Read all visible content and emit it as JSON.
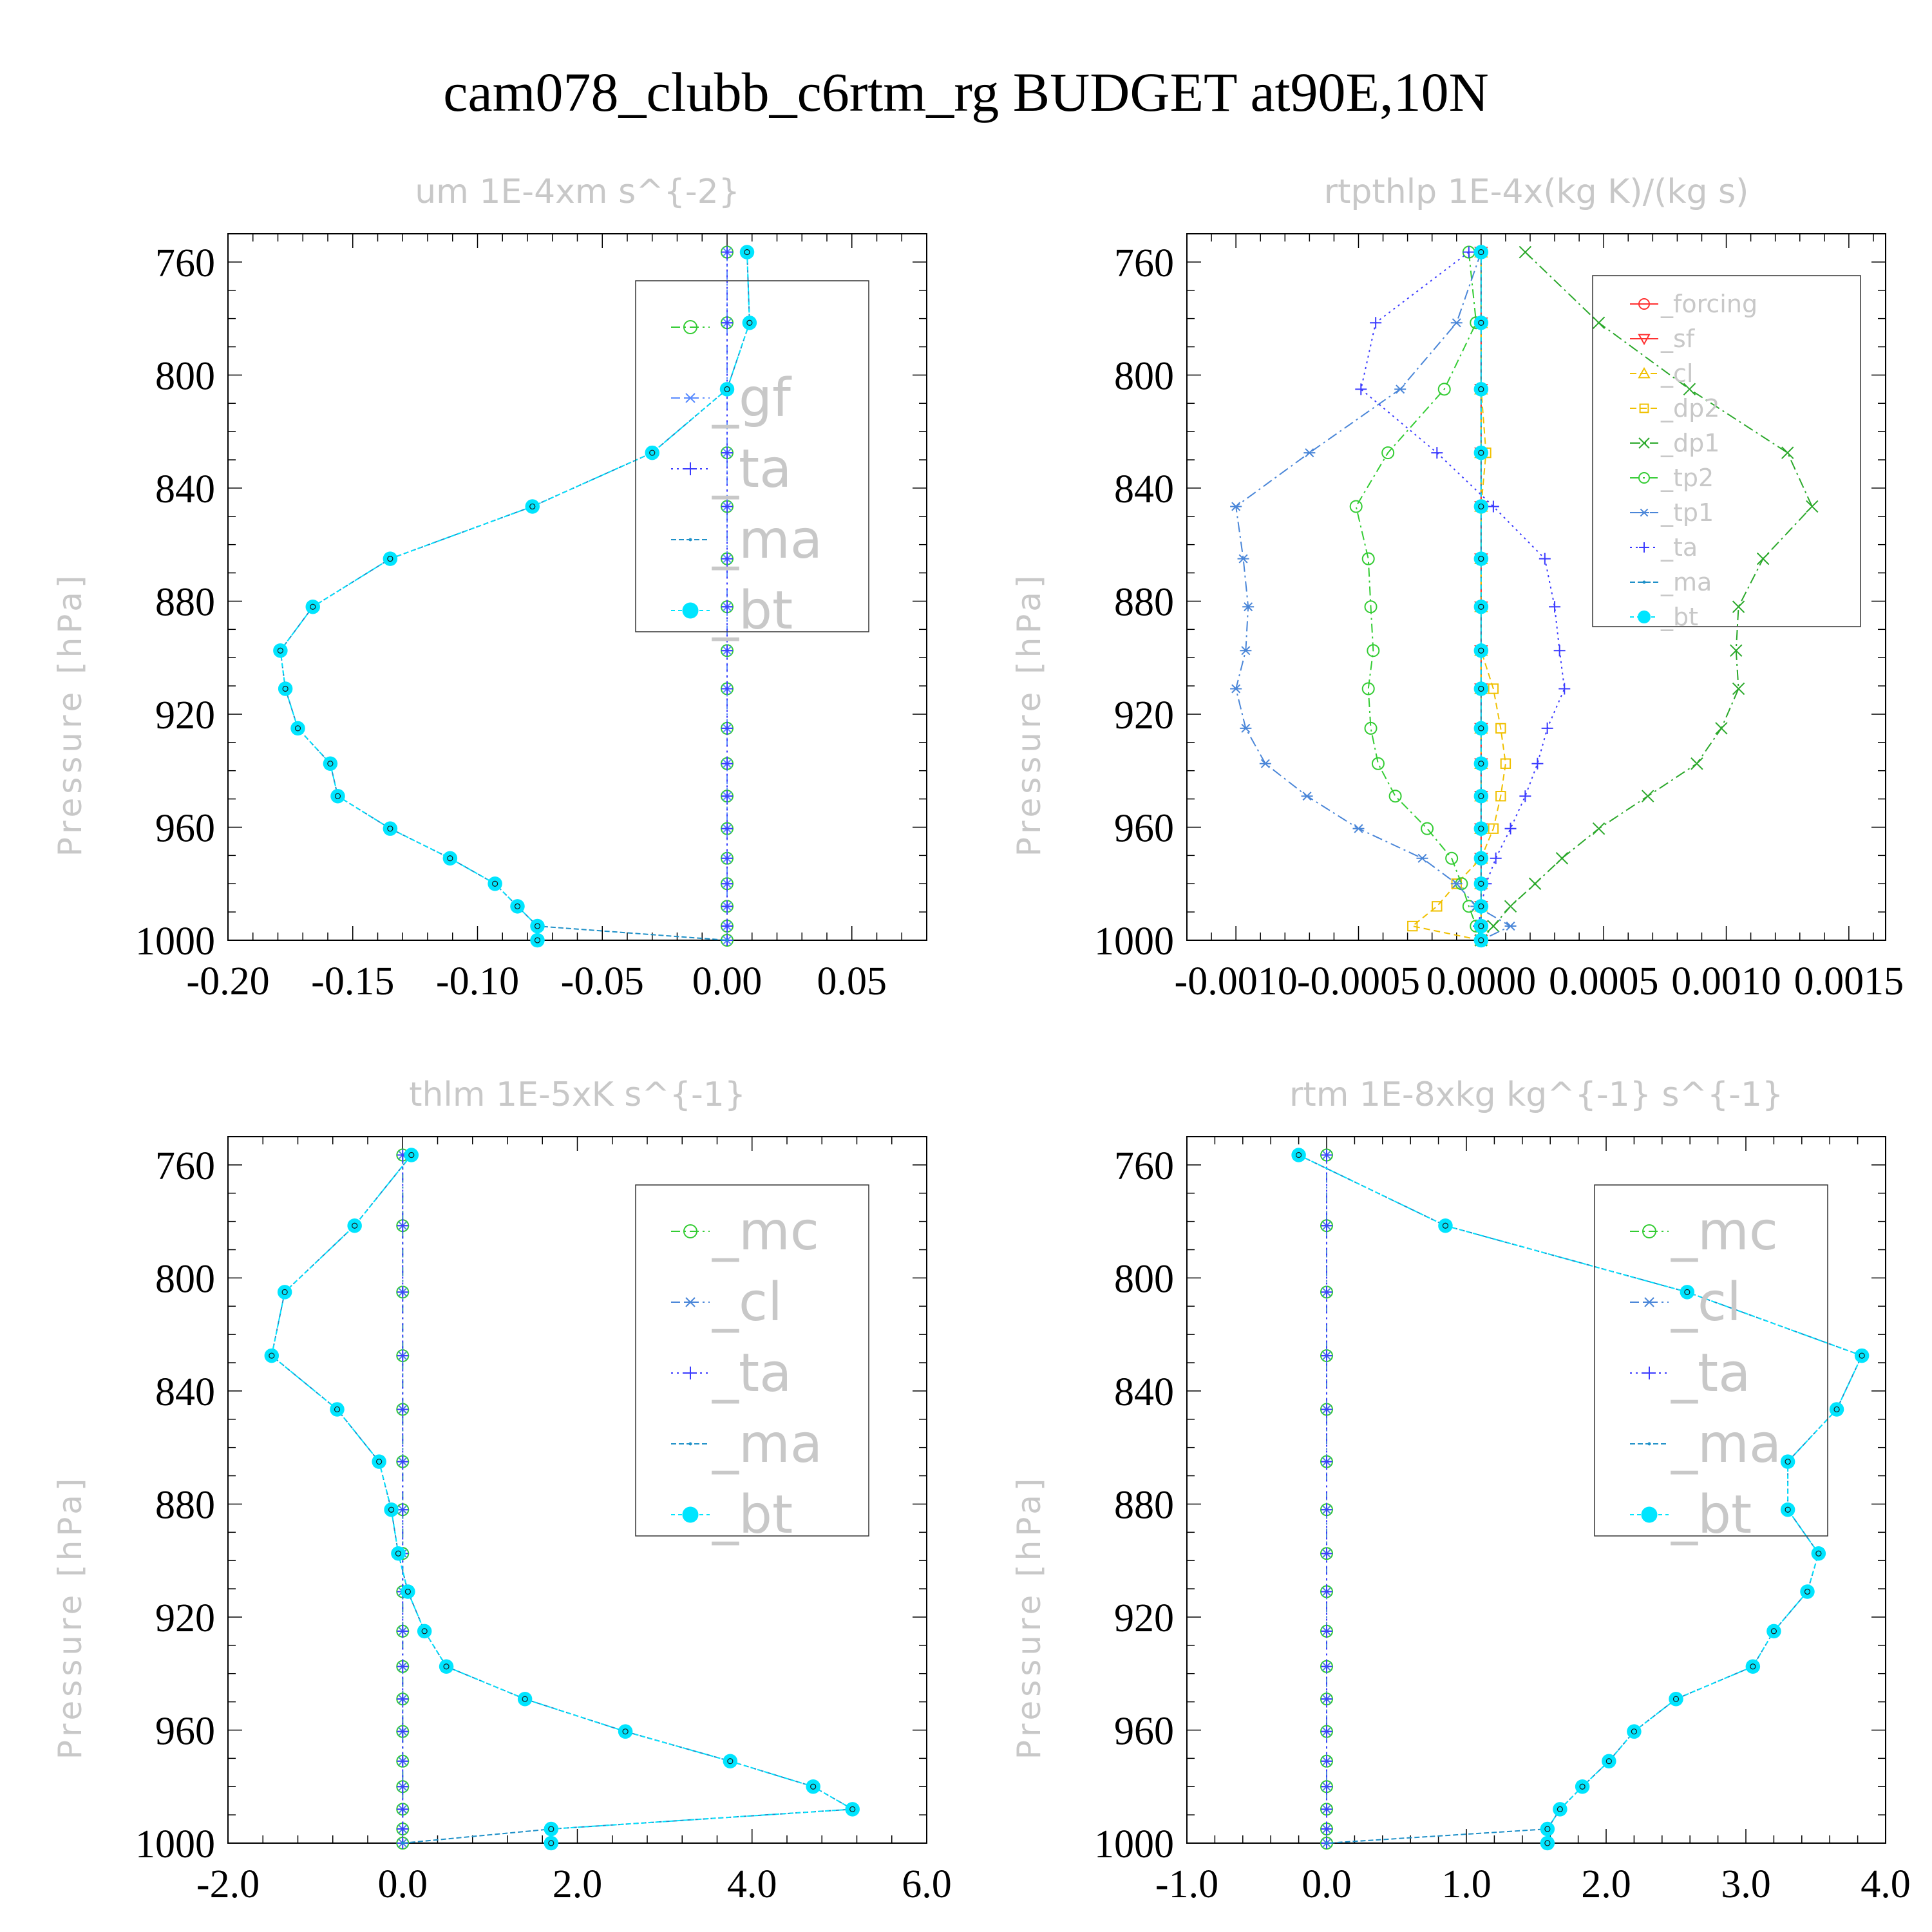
{
  "suptitle": "cam078_clubb_c6rtm_rg  BUDGET at90E,10N",
  "colors": {
    "bt": "#00e5ff",
    "ma": "#1e90c8",
    "ta": "#3a3aff",
    "gf": "#5a8cff",
    "cl": "#4a86d8",
    "mc": "#33cc33",
    "tp2": "#33cc33",
    "tp1": "#4a86d8",
    "dp1": "#2aa82a",
    "dp2": "#f0c000",
    "forcing": "#ff3030",
    "sf": "#ff3030",
    "dark": "#1a1a1a"
  },
  "chart_data": [
    {
      "type": "line",
      "title": "um  1E-4xm s^{-2}",
      "ylabel": "Pressure [hPa]",
      "yticks": [
        760,
        800,
        840,
        880,
        920,
        960,
        1000
      ],
      "ytick_labels": [
        "760",
        "800",
        "840",
        "880",
        "920",
        "960",
        "1000"
      ],
      "xticks": [
        -0.2,
        -0.15,
        -0.1,
        -0.05,
        0.0,
        0.05
      ],
      "xtick_labels": [
        "-0.20",
        "-0.15",
        "-0.10",
        "-0.05",
        "0.00",
        "0.05"
      ],
      "xlim": [
        -0.2,
        0.08
      ],
      "ylim": [
        1000,
        750
      ],
      "legend": {
        "position": "top-right",
        "labels": [
          "",
          "_gf",
          "_ta",
          "_ma",
          "_bt"
        ],
        "font_size": 82
      },
      "pressure": [
        756.5,
        781.5,
        805,
        827.5,
        846.5,
        865,
        882,
        897.5,
        911,
        925,
        937.5,
        949,
        960.5,
        971,
        980,
        988,
        995,
        1000
      ],
      "series": [
        {
          "name": "",
          "color": "mc",
          "marker": "circle-open",
          "values": [
            0.0,
            0.0,
            0.0,
            0.0,
            0.0,
            0.0,
            0.0,
            0.0,
            0.0,
            0.0,
            0.0,
            0.0,
            0.0,
            0.0,
            0.0,
            0.0,
            0.0,
            0.0
          ]
        },
        {
          "name": "_gf",
          "color": "gf",
          "marker": "star",
          "values": [
            0.0,
            0.0,
            0.0,
            0.0,
            0.0,
            0.0,
            0.0,
            0.0,
            0.0,
            0.0,
            0.0,
            0.0,
            0.0,
            0.0,
            0.0,
            0.0,
            0.0,
            0.0
          ]
        },
        {
          "name": "_ta",
          "color": "ta",
          "marker": "plus",
          "values": [
            0.0,
            0.0,
            0.0,
            0.0,
            0.0,
            0.0,
            0.0,
            0.0,
            0.0,
            0.0,
            0.0,
            0.0,
            0.0,
            0.0,
            0.0,
            0.0,
            0.0,
            0.0
          ]
        },
        {
          "name": "_ma",
          "color": "ma",
          "marker": "dot",
          "values": [
            0.008,
            0.009,
            0.0,
            -0.03,
            -0.078,
            -0.135,
            -0.166,
            -0.179,
            -0.177,
            -0.172,
            -0.159,
            -0.156,
            -0.135,
            -0.111,
            -0.093,
            -0.084,
            -0.076,
            0.0
          ]
        },
        {
          "name": "_bt",
          "color": "bt",
          "marker": "filled",
          "values": [
            0.008,
            0.009,
            0.0,
            -0.03,
            -0.078,
            -0.135,
            -0.166,
            -0.179,
            -0.177,
            -0.172,
            -0.159,
            -0.156,
            -0.135,
            -0.111,
            -0.093,
            -0.084,
            -0.076,
            -0.076
          ]
        }
      ]
    },
    {
      "type": "line",
      "title": "rtpthlp   1E-4x(kg K)/(kg s)",
      "ylabel": "Pressure [hPa]",
      "yticks": [
        760,
        800,
        840,
        880,
        920,
        960,
        1000
      ],
      "ytick_labels": [
        "760",
        "800",
        "840",
        "880",
        "920",
        "960",
        "1000"
      ],
      "xticks": [
        -0.001,
        -0.0005,
        0.0,
        0.0005,
        0.001,
        0.0015
      ],
      "xtick_labels": [
        "-0.0010",
        "-0.0005",
        "0.0000",
        "0.0005",
        "0.0010",
        "0.0015"
      ],
      "xlim": [
        -0.0012,
        0.00165
      ],
      "ylim": [
        1000,
        750
      ],
      "legend": {
        "position": "top-right",
        "labels": [
          "_forcing",
          "_sf",
          "_cl",
          "_dp2",
          "_dp1",
          "_tp2",
          "_tp1",
          "_ta",
          "_ma",
          "_bt"
        ],
        "font_size": 38
      },
      "pressure": [
        756.5,
        781.5,
        805,
        827.5,
        846.5,
        865,
        882,
        897.5,
        911,
        925,
        937.5,
        949,
        960.5,
        971,
        980,
        988,
        995,
        1000
      ],
      "series": [
        {
          "name": "_forcing",
          "color": "forcing",
          "marker": "circle-open",
          "values": [
            0,
            0,
            0,
            0,
            0,
            0,
            0,
            0,
            0,
            0,
            0,
            0,
            0,
            0,
            0,
            0,
            0,
            0
          ]
        },
        {
          "name": "_sf",
          "color": "sf",
          "marker": "triangle-down",
          "values": [
            0,
            0,
            0,
            0,
            0,
            0,
            0,
            0,
            0,
            0,
            0,
            0,
            0,
            0,
            0,
            0,
            0,
            0
          ]
        },
        {
          "name": "_cl",
          "color": "dp2",
          "marker": "triangle-up",
          "values": [
            0,
            0,
            0,
            0,
            0,
            0,
            0,
            0,
            0,
            0,
            0,
            0,
            0,
            0,
            0,
            0,
            0,
            0
          ]
        },
        {
          "name": "_dp2",
          "color": "dp2",
          "marker": "square-open",
          "values": [
            0.0,
            0.0,
            0.0,
            2e-05,
            0.0,
            0.0,
            0.0,
            0.0,
            5e-05,
            8e-05,
            0.0001,
            8e-05,
            5e-05,
            0.0,
            -0.0001,
            -0.00018,
            -0.00028,
            0.0
          ]
        },
        {
          "name": "_dp1",
          "color": "dp1",
          "marker": "x",
          "values": [
            0.00018,
            0.00048,
            0.00085,
            0.00125,
            0.00135,
            0.00115,
            0.00105,
            0.00104,
            0.00105,
            0.00098,
            0.00088,
            0.00068,
            0.00048,
            0.00033,
            0.00022,
            0.00012,
            5e-05,
            0.0
          ]
        },
        {
          "name": "_tp2",
          "color": "tp2",
          "marker": "circle-open",
          "values": [
            -5e-05,
            -2e-05,
            -0.00015,
            -0.00038,
            -0.00051,
            -0.00046,
            -0.00045,
            -0.00044,
            -0.00046,
            -0.00045,
            -0.00042,
            -0.00035,
            -0.00022,
            -0.00012,
            -8e-05,
            -5e-05,
            -2e-05,
            0.0
          ]
        },
        {
          "name": "_tp1",
          "color": "tp1",
          "marker": "star",
          "values": [
            0.0,
            -0.0001,
            -0.00033,
            -0.0007,
            -0.001,
            -0.00097,
            -0.00095,
            -0.00096,
            -0.001,
            -0.00096,
            -0.00088,
            -0.00071,
            -0.0005,
            -0.00024,
            -0.0001,
            -2e-05,
            0.00012,
            0.0
          ]
        },
        {
          "name": "_ta",
          "color": "ta",
          "marker": "plus",
          "values": [
            -5e-05,
            -0.00043,
            -0.00049,
            -0.00018,
            5e-05,
            0.00026,
            0.0003,
            0.00032,
            0.00034,
            0.00027,
            0.00023,
            0.00018,
            0.00012,
            6e-05,
            2e-05,
            0.0,
            -1e-05,
            0.0
          ]
        },
        {
          "name": "_ma",
          "color": "ma",
          "marker": "dot",
          "values": [
            0,
            0,
            0,
            0,
            0,
            0,
            0,
            0,
            0,
            0,
            0,
            0,
            0,
            0,
            0,
            0,
            0,
            0
          ]
        },
        {
          "name": "_bt",
          "color": "bt",
          "marker": "filled",
          "values": [
            0,
            0,
            0,
            0,
            0,
            0,
            0,
            0,
            0,
            0,
            0,
            0,
            0,
            0,
            0,
            0,
            0,
            0
          ]
        }
      ]
    },
    {
      "type": "line",
      "title": "thlm   1E-5xK s^{-1}",
      "ylabel": "Pressure [hPa]",
      "yticks": [
        760,
        800,
        840,
        880,
        920,
        960,
        1000
      ],
      "ytick_labels": [
        "760",
        "800",
        "840",
        "880",
        "920",
        "960",
        "1000"
      ],
      "xticks": [
        -2,
        0,
        2,
        4,
        6
      ],
      "xtick_labels": [
        "-2.0",
        "0.0",
        "2.0",
        "4.0",
        "6.0"
      ],
      "xlim": [
        -2,
        6
      ],
      "ylim": [
        1000,
        750
      ],
      "legend": {
        "position": "top-right",
        "labels": [
          "_mc",
          "_cl",
          "_ta",
          "_ma",
          "_bt"
        ],
        "font_size": 82
      },
      "pressure": [
        756.5,
        781.5,
        805,
        827.5,
        846.5,
        865,
        882,
        897.5,
        911,
        925,
        937.5,
        949,
        960.5,
        971,
        980,
        988,
        995,
        1000
      ],
      "series": [
        {
          "name": "_mc",
          "color": "mc",
          "marker": "circle-open",
          "values": [
            0,
            0,
            0,
            0,
            0,
            0,
            0,
            0,
            0,
            0,
            0,
            0,
            0,
            0,
            0,
            0,
            0,
            0
          ]
        },
        {
          "name": "_cl",
          "color": "cl",
          "marker": "star",
          "values": [
            0,
            0,
            0,
            0,
            0,
            0,
            0,
            0,
            0,
            0,
            0,
            0,
            0,
            0,
            0,
            0,
            0,
            0
          ]
        },
        {
          "name": "_ta",
          "color": "ta",
          "marker": "plus",
          "values": [
            0,
            0,
            0,
            0,
            0,
            0,
            0,
            0,
            0,
            0,
            0,
            0,
            0,
            0,
            0,
            0,
            0,
            0
          ]
        },
        {
          "name": "_ma",
          "color": "ma",
          "marker": "dot",
          "values": [
            0.1,
            -0.55,
            -1.35,
            -1.5,
            -0.75,
            -0.27,
            -0.13,
            -0.05,
            0.06,
            0.25,
            0.5,
            1.4,
            2.55,
            3.75,
            4.7,
            5.15,
            1.7,
            0.0
          ]
        },
        {
          "name": "_bt",
          "color": "bt",
          "marker": "filled",
          "values": [
            0.1,
            -0.55,
            -1.35,
            -1.5,
            -0.75,
            -0.27,
            -0.13,
            -0.05,
            0.06,
            0.25,
            0.5,
            1.4,
            2.55,
            3.75,
            4.7,
            5.15,
            1.7,
            1.7
          ]
        }
      ]
    },
    {
      "type": "line",
      "title": "rtm   1E-8xkg kg^{-1} s^{-1}",
      "ylabel": "Pressure [hPa]",
      "yticks": [
        760,
        800,
        840,
        880,
        920,
        960,
        1000
      ],
      "ytick_labels": [
        "760",
        "800",
        "840",
        "880",
        "920",
        "960",
        "1000"
      ],
      "xticks": [
        -1,
        0,
        1,
        2,
        3,
        4
      ],
      "xtick_labels": [
        "-1.0",
        "0.0",
        "1.0",
        "2.0",
        "3.0",
        "4.0"
      ],
      "xlim": [
        -1,
        4
      ],
      "ylim": [
        1000,
        750
      ],
      "legend": {
        "position": "top-right",
        "labels": [
          "_mc",
          "_cl",
          "_ta",
          "_ma",
          "_bt"
        ],
        "font_size": 82
      },
      "pressure": [
        756.5,
        781.5,
        805,
        827.5,
        846.5,
        865,
        882,
        897.5,
        911,
        925,
        937.5,
        949,
        960.5,
        971,
        980,
        988,
        995,
        1000
      ],
      "series": [
        {
          "name": "_mc",
          "color": "mc",
          "marker": "circle-open",
          "values": [
            0,
            0,
            0,
            0,
            0,
            0,
            0,
            0,
            0,
            0,
            0,
            0,
            0,
            0,
            0,
            0,
            0,
            0
          ]
        },
        {
          "name": "_cl",
          "color": "cl",
          "marker": "star",
          "values": [
            0,
            0,
            0,
            0,
            0,
            0,
            0,
            0,
            0,
            0,
            0,
            0,
            0,
            0,
            0,
            0,
            0,
            0
          ]
        },
        {
          "name": "_ta",
          "color": "ta",
          "marker": "plus",
          "values": [
            0,
            0,
            0,
            0,
            0,
            0,
            0,
            0,
            0,
            0,
            0,
            0,
            0,
            0,
            0,
            0,
            0,
            0
          ]
        },
        {
          "name": "_ma",
          "color": "ma",
          "marker": "dot",
          "values": [
            -0.2,
            0.85,
            2.58,
            3.83,
            3.65,
            3.3,
            3.3,
            3.52,
            3.44,
            3.2,
            3.05,
            2.5,
            2.2,
            2.02,
            1.83,
            1.67,
            1.58,
            0.0
          ]
        },
        {
          "name": "_bt",
          "color": "bt",
          "marker": "filled",
          "values": [
            -0.2,
            0.85,
            2.58,
            3.83,
            3.65,
            3.3,
            3.3,
            3.52,
            3.44,
            3.2,
            3.05,
            2.5,
            2.2,
            2.02,
            1.83,
            1.67,
            1.58,
            1.58
          ]
        }
      ]
    }
  ]
}
